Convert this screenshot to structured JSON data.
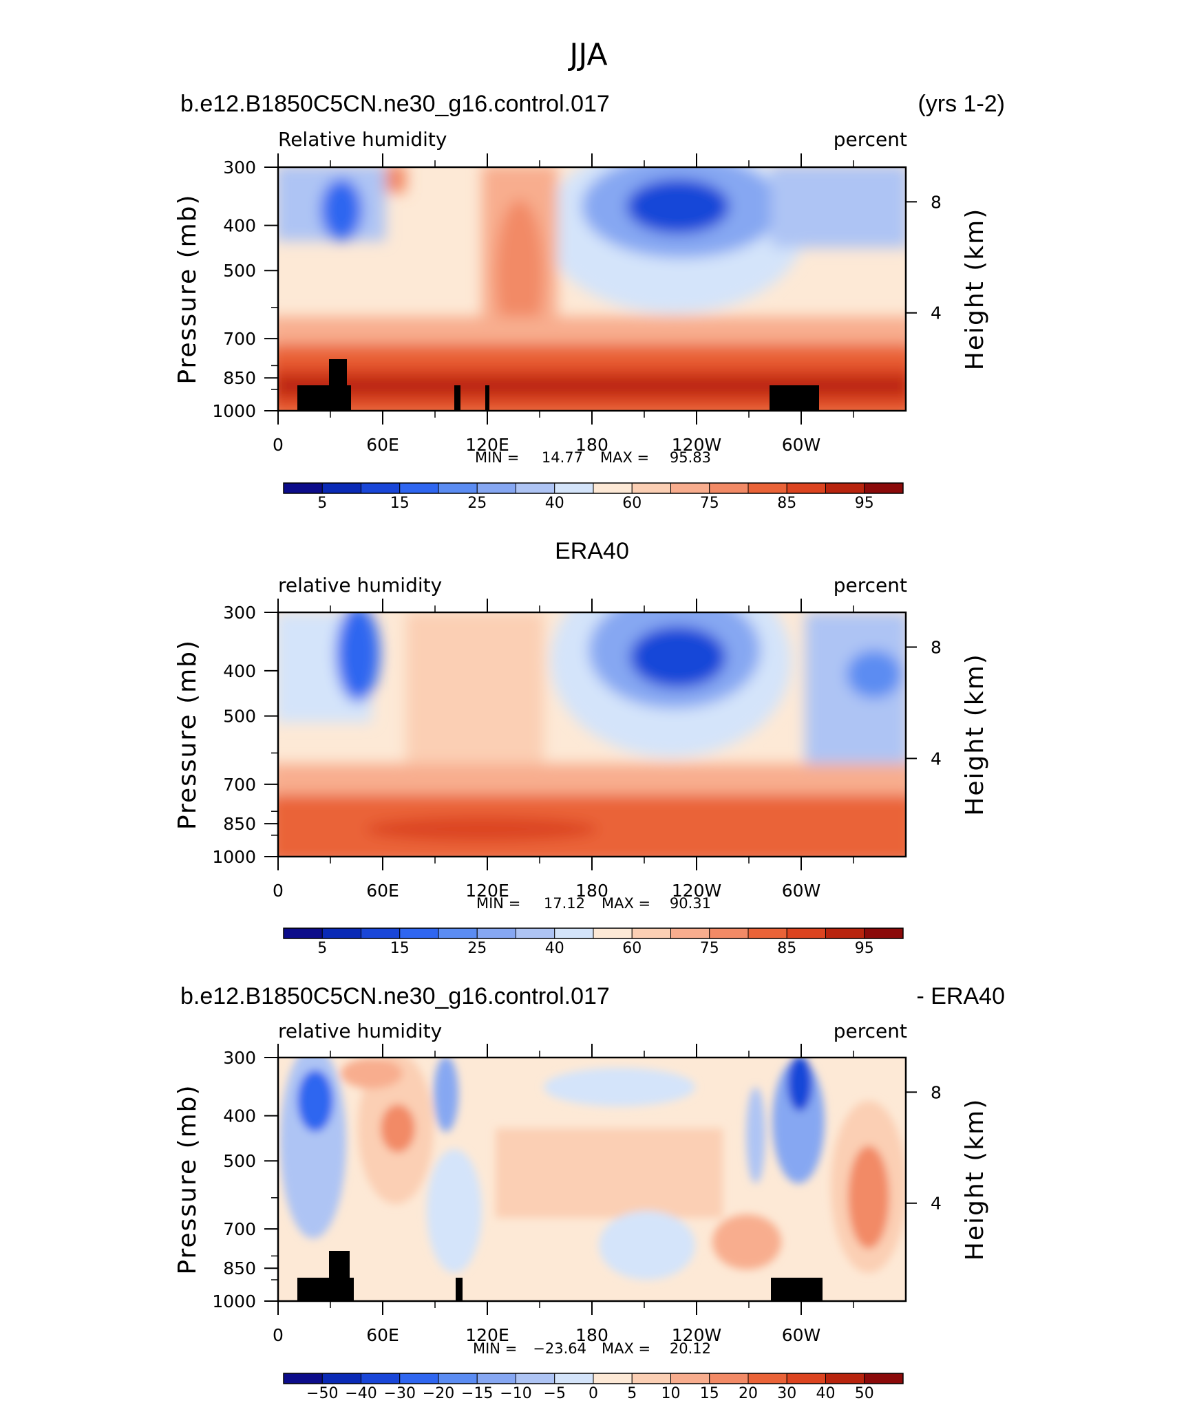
{
  "figure_title": "JJA",
  "chart_data": [
    {
      "type": "heatmap",
      "case_label": "b.e12.B1850C5CN.ne30_g16.control.017",
      "case_label_right": "(yrs 1-2)",
      "variable": "Relative humidity",
      "units": "percent",
      "ylabel": "Pressure (mb)",
      "ylabel_right": "Height (km)",
      "y_ticks": [
        "300",
        "400",
        "500",
        "700",
        "850",
        "1000"
      ],
      "y_tick_values": [
        300,
        400,
        500,
        700,
        850,
        1000
      ],
      "y_right_ticks": [
        "8",
        "4"
      ],
      "y_right_values": [
        8,
        4
      ],
      "x_ticks": [
        "0",
        "60E",
        "120E",
        "180",
        "120W",
        "60W"
      ],
      "x_tick_values": [
        0,
        60,
        120,
        180,
        240,
        300
      ],
      "x_range": [
        0,
        360
      ],
      "y_range": [
        300,
        1000
      ],
      "min_label": "MIN =",
      "min_value": "14.77",
      "max_label": "MAX =",
      "max_value": "95.83",
      "colorbar_ticks": [
        "5",
        "15",
        "25",
        "40",
        "60",
        "75",
        "85",
        "95"
      ],
      "colorbar_levels": [
        5,
        10,
        15,
        20,
        25,
        30,
        40,
        50,
        60,
        65,
        70,
        75,
        80,
        85,
        90,
        95
      ]
    },
    {
      "type": "heatmap",
      "case_label": "ERA40",
      "variable": "relative humidity",
      "units": "percent",
      "ylabel": "Pressure (mb)",
      "ylabel_right": "Height (km)",
      "y_ticks": [
        "300",
        "400",
        "500",
        "700",
        "850",
        "1000"
      ],
      "y_tick_values": [
        300,
        400,
        500,
        700,
        850,
        1000
      ],
      "y_right_ticks": [
        "8",
        "4"
      ],
      "y_right_values": [
        8,
        4
      ],
      "x_ticks": [
        "0",
        "60E",
        "120E",
        "180",
        "120W",
        "60W"
      ],
      "x_tick_values": [
        0,
        60,
        120,
        180,
        240,
        300
      ],
      "x_range": [
        0,
        360
      ],
      "y_range": [
        300,
        1000
      ],
      "min_label": "MIN =",
      "min_value": "17.12",
      "max_label": "MAX =",
      "max_value": "90.31",
      "colorbar_ticks": [
        "5",
        "15",
        "25",
        "40",
        "60",
        "75",
        "85",
        "95"
      ],
      "colorbar_levels": [
        5,
        10,
        15,
        20,
        25,
        30,
        40,
        50,
        60,
        65,
        70,
        75,
        80,
        85,
        90,
        95
      ]
    },
    {
      "type": "heatmap",
      "case_label": "b.e12.B1850C5CN.ne30_g16.control.017",
      "case_label_right": "- ERA40",
      "variable": "relative humidity",
      "units": "percent",
      "ylabel": "Pressure (mb)",
      "ylabel_right": "Height (km)",
      "y_ticks": [
        "300",
        "400",
        "500",
        "700",
        "850",
        "1000"
      ],
      "y_tick_values": [
        300,
        400,
        500,
        700,
        850,
        1000
      ],
      "y_right_ticks": [
        "8",
        "4"
      ],
      "y_right_values": [
        8,
        4
      ],
      "x_ticks": [
        "0",
        "60E",
        "120E",
        "180",
        "120W",
        "60W"
      ],
      "x_tick_values": [
        0,
        60,
        120,
        180,
        240,
        300
      ],
      "x_range": [
        0,
        360
      ],
      "y_range": [
        300,
        1000
      ],
      "min_label": "MIN =",
      "min_value": "−23.64",
      "max_label": "MAX =",
      "max_value": "20.12",
      "colorbar_ticks": [
        "−50",
        "−40",
        "−30",
        "−20",
        "−15",
        "−10",
        "−5",
        "0",
        "5",
        "10",
        "15",
        "20",
        "30",
        "40",
        "50"
      ],
      "colorbar_levels": [
        -50,
        -40,
        -30,
        -20,
        -15,
        -10,
        -5,
        0,
        5,
        10,
        15,
        20,
        30,
        40,
        50
      ]
    }
  ],
  "colorbar_colors": [
    "#0c0c8a",
    "#0a2ab6",
    "#1946d8",
    "#2f66f0",
    "#5b8cf2",
    "#86a7f2",
    "#aec4f4",
    "#d4e4fa",
    "#fde9d6",
    "#fbcfb4",
    "#f8ad8e",
    "#f28a66",
    "#ea6338",
    "#dc4420",
    "#b8240e",
    "#8b0a0a"
  ],
  "colors": {
    "axis": "#000000",
    "land": "#000000",
    "background": "#ffffff"
  }
}
